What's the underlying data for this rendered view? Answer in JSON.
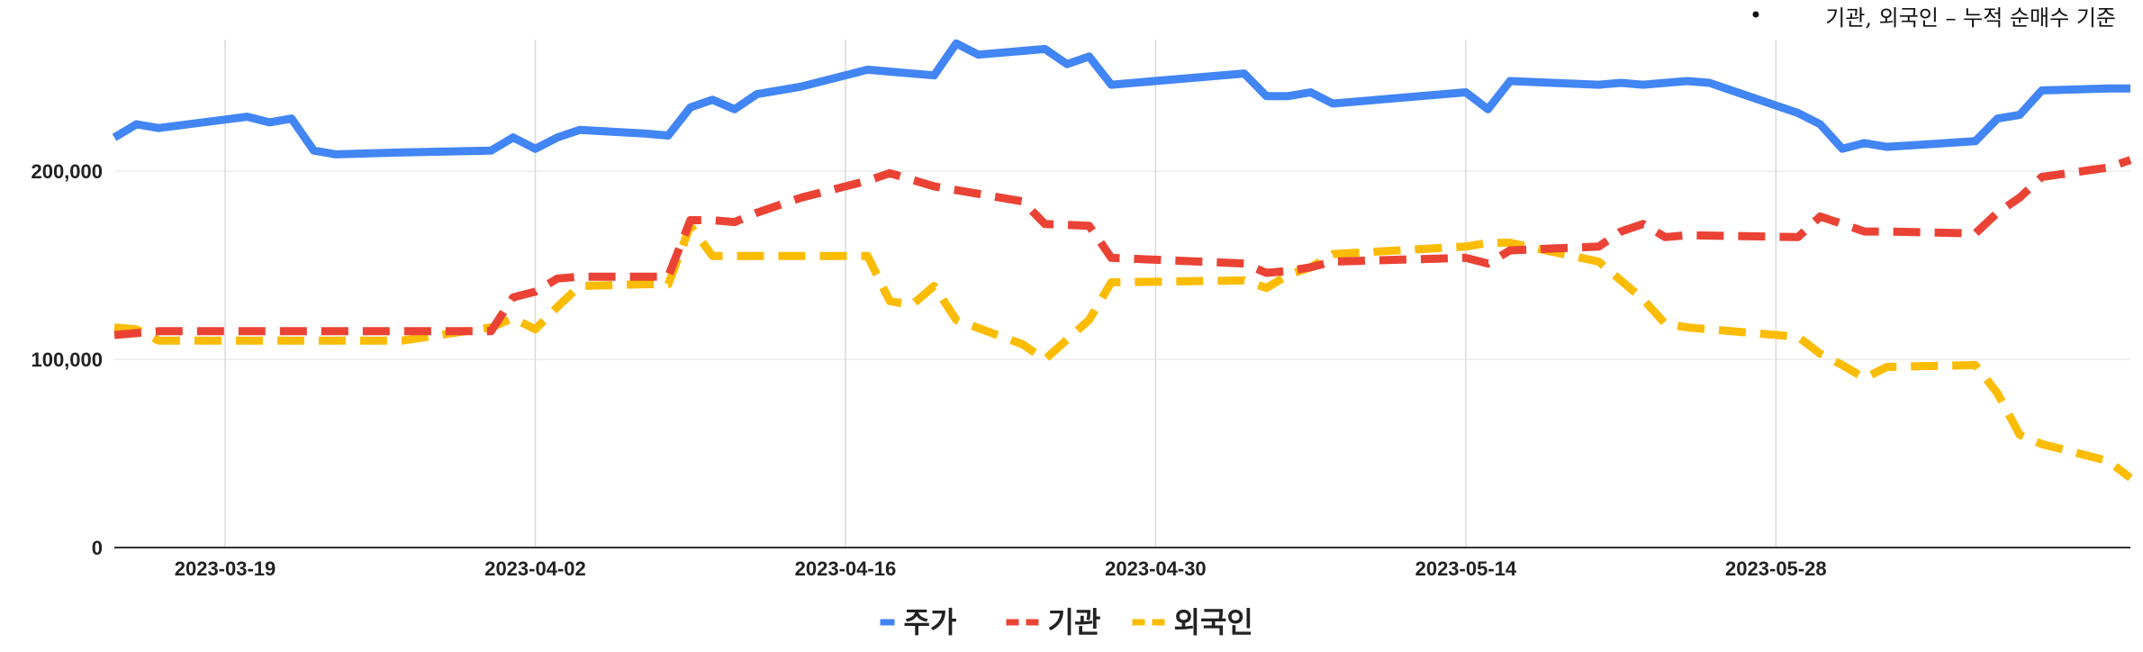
{
  "note": {
    "bullet": "•",
    "text": "기관, 외국인 – 누적 순매수 기준"
  },
  "legend": {
    "position": "bottom"
  },
  "chart_data": {
    "type": "line",
    "title": "",
    "xlabel": "",
    "ylabel": "",
    "x_range": [
      "2023-03-14",
      "2023-06-13"
    ],
    "ylim": [
      0,
      270000
    ],
    "grid": true,
    "x_ticks": [
      "2023-03-19",
      "2023-04-02",
      "2023-04-16",
      "2023-04-30",
      "2023-05-14",
      "2023-05-28"
    ],
    "y_ticks": [
      {
        "value": 0,
        "label": "0"
      },
      {
        "value": 100000,
        "label": "100,000"
      },
      {
        "value": 200000,
        "label": "200,000"
      }
    ],
    "series": [
      {
        "name": "주가",
        "color": "#4285F4",
        "dash": "solid",
        "points": [
          [
            "2023-03-14",
            218000
          ],
          [
            "2023-03-15",
            225000
          ],
          [
            "2023-03-16",
            223000
          ],
          [
            "2023-03-20",
            229000
          ],
          [
            "2023-03-21",
            226000
          ],
          [
            "2023-03-22",
            228000
          ],
          [
            "2023-03-23",
            211000
          ],
          [
            "2023-03-24",
            209000
          ],
          [
            "2023-03-27",
            210000
          ],
          [
            "2023-03-31",
            211000
          ],
          [
            "2023-04-01",
            218000
          ],
          [
            "2023-04-02",
            212000
          ],
          [
            "2023-04-03",
            218000
          ],
          [
            "2023-04-04",
            222000
          ],
          [
            "2023-04-07",
            220000
          ],
          [
            "2023-04-08",
            219000
          ],
          [
            "2023-04-09",
            234000
          ],
          [
            "2023-04-10",
            238000
          ],
          [
            "2023-04-11",
            233000
          ],
          [
            "2023-04-12",
            241000
          ],
          [
            "2023-04-14",
            245000
          ],
          [
            "2023-04-17",
            254000
          ],
          [
            "2023-04-20",
            251000
          ],
          [
            "2023-04-21",
            268000
          ],
          [
            "2023-04-22",
            262000
          ],
          [
            "2023-04-25",
            265000
          ],
          [
            "2023-04-26",
            257000
          ],
          [
            "2023-04-27",
            261000
          ],
          [
            "2023-04-28",
            246000
          ],
          [
            "2023-05-04",
            252000
          ],
          [
            "2023-05-05",
            240000
          ],
          [
            "2023-05-06",
            240000
          ],
          [
            "2023-05-07",
            242000
          ],
          [
            "2023-05-08",
            236000
          ],
          [
            "2023-05-14",
            242000
          ],
          [
            "2023-05-15",
            233000
          ],
          [
            "2023-05-16",
            248000
          ],
          [
            "2023-05-20",
            246000
          ],
          [
            "2023-05-21",
            247000
          ],
          [
            "2023-05-22",
            246000
          ],
          [
            "2023-05-23",
            247000
          ],
          [
            "2023-05-24",
            248000
          ],
          [
            "2023-05-25",
            247000
          ],
          [
            "2023-05-29",
            231000
          ],
          [
            "2023-05-30",
            225000
          ],
          [
            "2023-05-31",
            212000
          ],
          [
            "2023-06-01",
            215000
          ],
          [
            "2023-06-02",
            213000
          ],
          [
            "2023-06-06",
            216000
          ],
          [
            "2023-06-07",
            228000
          ],
          [
            "2023-06-08",
            230000
          ],
          [
            "2023-06-09",
            243000
          ],
          [
            "2023-06-12",
            244000
          ],
          [
            "2023-06-13",
            244000
          ]
        ]
      },
      {
        "name": "기관",
        "color": "#EA4335",
        "dash": "dashed",
        "points": [
          [
            "2023-03-14",
            113000
          ],
          [
            "2023-03-15",
            114000
          ],
          [
            "2023-03-16",
            115000
          ],
          [
            "2023-03-20",
            115000
          ],
          [
            "2023-03-27",
            115000
          ],
          [
            "2023-03-31",
            115000
          ],
          [
            "2023-04-01",
            133000
          ],
          [
            "2023-04-02",
            136000
          ],
          [
            "2023-04-03",
            143000
          ],
          [
            "2023-04-04",
            144000
          ],
          [
            "2023-04-07",
            144000
          ],
          [
            "2023-04-08",
            144000
          ],
          [
            "2023-04-09",
            174000
          ],
          [
            "2023-04-10",
            174000
          ],
          [
            "2023-04-11",
            173000
          ],
          [
            "2023-04-12",
            178000
          ],
          [
            "2023-04-14",
            186000
          ],
          [
            "2023-04-17",
            195000
          ],
          [
            "2023-04-18",
            199000
          ],
          [
            "2023-04-20",
            192000
          ],
          [
            "2023-04-24",
            184000
          ],
          [
            "2023-04-25",
            172000
          ],
          [
            "2023-04-27",
            171000
          ],
          [
            "2023-04-28",
            154000
          ],
          [
            "2023-05-04",
            151000
          ],
          [
            "2023-05-05",
            146000
          ],
          [
            "2023-05-06",
            147000
          ],
          [
            "2023-05-07",
            149000
          ],
          [
            "2023-05-08",
            152000
          ],
          [
            "2023-05-14",
            154000
          ],
          [
            "2023-05-15",
            151000
          ],
          [
            "2023-05-16",
            158000
          ],
          [
            "2023-05-20",
            160000
          ],
          [
            "2023-05-21",
            168000
          ],
          [
            "2023-05-22",
            172000
          ],
          [
            "2023-05-23",
            165000
          ],
          [
            "2023-05-24",
            166000
          ],
          [
            "2023-05-29",
            165000
          ],
          [
            "2023-05-30",
            176000
          ],
          [
            "2023-05-31",
            172000
          ],
          [
            "2023-06-01",
            168000
          ],
          [
            "2023-06-02",
            168000
          ],
          [
            "2023-06-06",
            167000
          ],
          [
            "2023-06-07",
            178000
          ],
          [
            "2023-06-08",
            186000
          ],
          [
            "2023-06-09",
            197000
          ],
          [
            "2023-06-12",
            202000
          ],
          [
            "2023-06-13",
            206000
          ]
        ]
      },
      {
        "name": "외국인",
        "color": "#FBBC04",
        "dash": "dashed",
        "points": [
          [
            "2023-03-14",
            117000
          ],
          [
            "2023-03-15",
            116000
          ],
          [
            "2023-03-16",
            110000
          ],
          [
            "2023-03-20",
            110000
          ],
          [
            "2023-03-27",
            110000
          ],
          [
            "2023-03-31",
            117000
          ],
          [
            "2023-04-01",
            122000
          ],
          [
            "2023-04-02",
            116000
          ],
          [
            "2023-04-03",
            128000
          ],
          [
            "2023-04-04",
            139000
          ],
          [
            "2023-04-07",
            140000
          ],
          [
            "2023-04-08",
            140000
          ],
          [
            "2023-04-09",
            171000
          ],
          [
            "2023-04-10",
            155000
          ],
          [
            "2023-04-11",
            155000
          ],
          [
            "2023-04-12",
            155000
          ],
          [
            "2023-04-14",
            155000
          ],
          [
            "2023-04-17",
            155000
          ],
          [
            "2023-04-18",
            131000
          ],
          [
            "2023-04-19",
            129000
          ],
          [
            "2023-04-20",
            139000
          ],
          [
            "2023-04-21",
            121000
          ],
          [
            "2023-04-24",
            108000
          ],
          [
            "2023-04-25",
            100000
          ],
          [
            "2023-04-27",
            121000
          ],
          [
            "2023-04-28",
            141000
          ],
          [
            "2023-05-04",
            142000
          ],
          [
            "2023-05-05",
            138000
          ],
          [
            "2023-05-06",
            145000
          ],
          [
            "2023-05-07",
            149000
          ],
          [
            "2023-05-08",
            156000
          ],
          [
            "2023-05-14",
            160000
          ],
          [
            "2023-05-15",
            162000
          ],
          [
            "2023-05-16",
            162000
          ],
          [
            "2023-05-20",
            152000
          ],
          [
            "2023-05-21",
            142000
          ],
          [
            "2023-05-22",
            132000
          ],
          [
            "2023-05-23",
            119000
          ],
          [
            "2023-05-24",
            117000
          ],
          [
            "2023-05-29",
            112000
          ],
          [
            "2023-05-30",
            103000
          ],
          [
            "2023-05-31",
            97000
          ],
          [
            "2023-06-01",
            90000
          ],
          [
            "2023-06-02",
            96000
          ],
          [
            "2023-06-06",
            97000
          ],
          [
            "2023-06-07",
            82000
          ],
          [
            "2023-06-08",
            60000
          ],
          [
            "2023-06-09",
            55000
          ],
          [
            "2023-06-12",
            46000
          ],
          [
            "2023-06-13",
            37000
          ]
        ]
      }
    ]
  }
}
